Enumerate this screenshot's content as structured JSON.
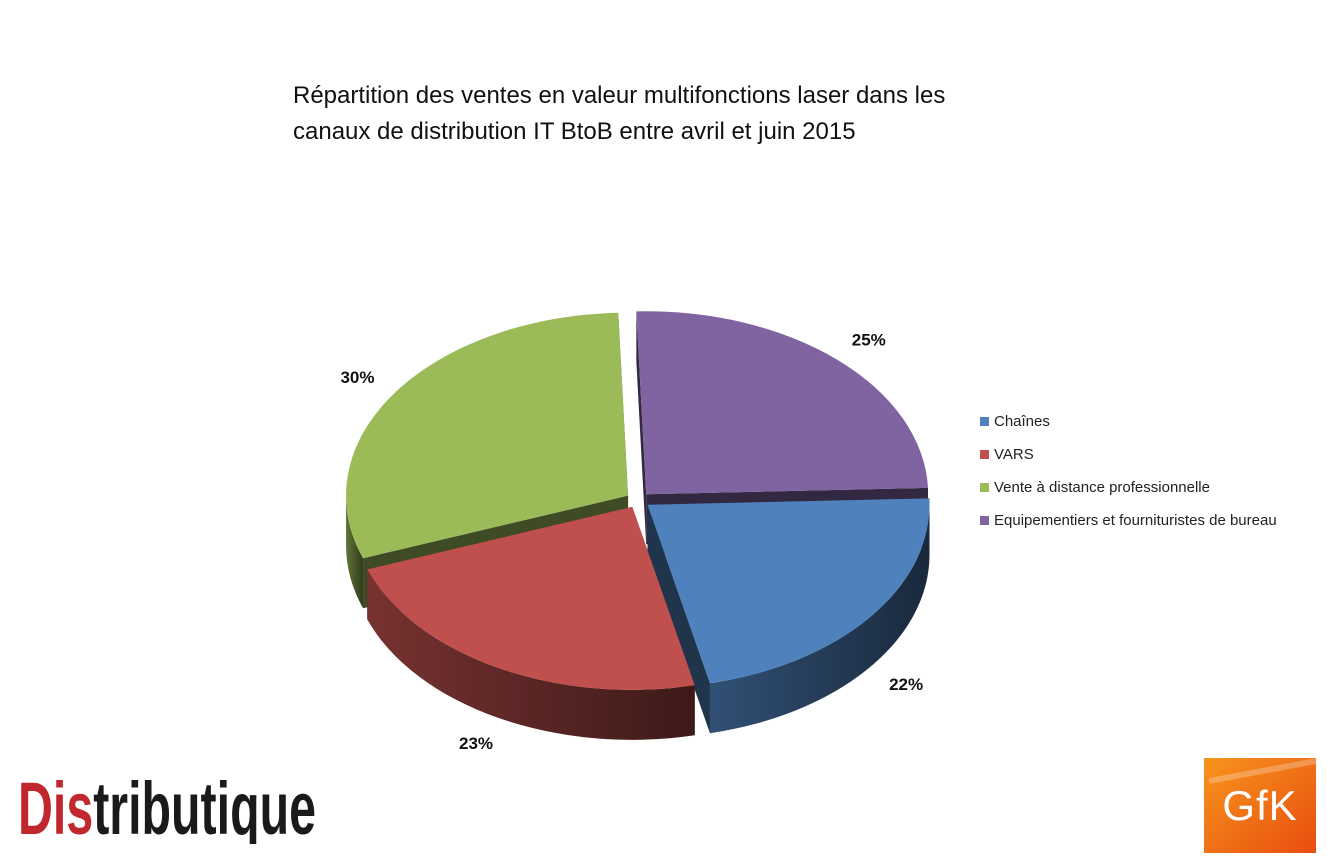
{
  "title": "Répartition des ventes en valeur multifonctions laser dans les\ncanaux de distribution IT BtoB entre avril et juin 2015",
  "chart_data": {
    "type": "pie",
    "title": "Répartition des ventes en valeur multifonctions laser dans les canaux de distribution IT BtoB entre avril et juin 2015",
    "categories": [
      "Chaînes",
      "VARS",
      "Vente à distance professionnelle",
      "Equipementiers et fournituristes de bureau"
    ],
    "values": [
      22,
      23,
      30,
      25
    ],
    "labels": [
      "22%",
      "23%",
      "30%",
      "25%"
    ],
    "colors": [
      "#4f81bd",
      "#c0504d",
      "#9bbb59",
      "#8064a2"
    ],
    "legend_position": "right",
    "style": "3d-exploded"
  },
  "logos": {
    "distributique": "Distributique",
    "gfk": "GfK"
  }
}
